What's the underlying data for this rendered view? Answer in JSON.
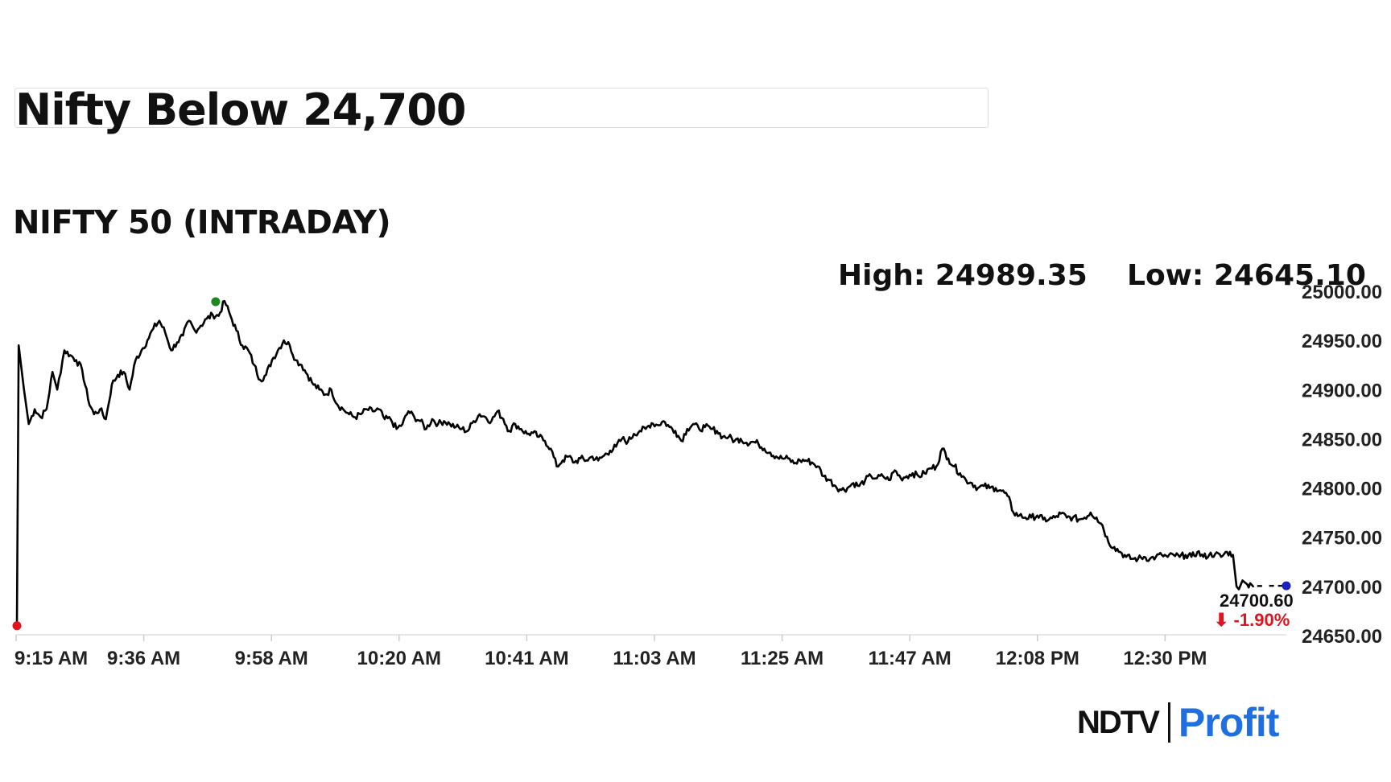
{
  "headline": "Nifty Below 24,700",
  "chart_title": "NIFTY 50 (INTRADAY)",
  "high_label": "High: 24989.35",
  "low_label": "Low: 24645.10",
  "last_value_label": "24700.60",
  "change_label": "⬇ -1.90%",
  "logo": {
    "ndtv": "NDTV",
    "profit": "Profit"
  },
  "colors": {
    "line": "#000000",
    "open_marker": "#e0141e",
    "high_marker": "#1a8a1a",
    "last_marker": "#1a22c0",
    "change_negative": "#e0141e"
  },
  "chart_data": {
    "type": "line",
    "title": "NIFTY 50 (INTRADAY)",
    "xlabel": "",
    "ylabel": "",
    "y_ticks": [
      "25000.00",
      "24950.00",
      "24900.00",
      "24850.00",
      "24800.00",
      "24750.00",
      "24700.00",
      "24650.00"
    ],
    "x_ticks": [
      "9:15 AM",
      "9:36 AM",
      "9:58 AM",
      "10:20 AM",
      "10:41 AM",
      "11:03 AM",
      "11:25 AM",
      "11:47 AM",
      "12:08 PM",
      "12:30 PM"
    ],
    "ylim": [
      24650,
      25000
    ],
    "x_range_minutes": [
      0,
      214
    ],
    "grid": false,
    "series": [
      {
        "points": [
          [
            0,
            24660
          ],
          [
            0.3,
            24945
          ],
          [
            1.2,
            24900
          ],
          [
            2,
            24865
          ],
          [
            3,
            24880
          ],
          [
            4,
            24872
          ],
          [
            5,
            24880
          ],
          [
            6,
            24918
          ],
          [
            6.8,
            24900
          ],
          [
            8,
            24940
          ],
          [
            9,
            24935
          ],
          [
            10,
            24930
          ],
          [
            11,
            24920
          ],
          [
            12,
            24890
          ],
          [
            13,
            24875
          ],
          [
            14,
            24880
          ],
          [
            15,
            24870
          ],
          [
            16,
            24905
          ],
          [
            17,
            24915
          ],
          [
            18,
            24918
          ],
          [
            19,
            24900
          ],
          [
            20,
            24930
          ],
          [
            21,
            24940
          ],
          [
            22,
            24950
          ],
          [
            23,
            24962
          ],
          [
            24,
            24970
          ],
          [
            25,
            24958
          ],
          [
            26,
            24940
          ],
          [
            27,
            24948
          ],
          [
            28,
            24955
          ],
          [
            29,
            24970
          ],
          [
            30,
            24960
          ],
          [
            31,
            24965
          ],
          [
            32,
            24972
          ],
          [
            33,
            24976
          ],
          [
            34,
            24975
          ],
          [
            35,
            24990
          ],
          [
            36,
            24975
          ],
          [
            37,
            24960
          ],
          [
            38,
            24945
          ],
          [
            39,
            24940
          ],
          [
            40,
            24925
          ],
          [
            41,
            24910
          ],
          [
            42,
            24915
          ],
          [
            43,
            24930
          ],
          [
            44,
            24940
          ],
          [
            45,
            24950
          ],
          [
            46,
            24945
          ],
          [
            47,
            24930
          ],
          [
            48,
            24925
          ],
          [
            49,
            24915
          ],
          [
            50,
            24905
          ],
          [
            51,
            24900
          ],
          [
            52,
            24895
          ],
          [
            53,
            24900
          ],
          [
            54,
            24885
          ],
          [
            55,
            24880
          ],
          [
            56,
            24875
          ],
          [
            57,
            24872
          ],
          [
            58,
            24875
          ],
          [
            59,
            24880
          ],
          [
            60,
            24878
          ],
          [
            61,
            24880
          ],
          [
            62,
            24870
          ],
          [
            63,
            24870
          ],
          [
            64,
            24860
          ],
          [
            65,
            24865
          ],
          [
            66,
            24878
          ],
          [
            67,
            24872
          ],
          [
            68,
            24868
          ],
          [
            69,
            24860
          ],
          [
            70,
            24870
          ],
          [
            71,
            24865
          ],
          [
            72,
            24868
          ],
          [
            73,
            24865
          ],
          [
            74,
            24862
          ],
          [
            75,
            24860
          ],
          [
            76,
            24858
          ],
          [
            77,
            24868
          ],
          [
            78,
            24875
          ],
          [
            79,
            24872
          ],
          [
            80,
            24868
          ],
          [
            81,
            24878
          ],
          [
            82,
            24870
          ],
          [
            83,
            24858
          ],
          [
            84,
            24865
          ],
          [
            85,
            24860
          ],
          [
            86,
            24855
          ],
          [
            87,
            24856
          ],
          [
            88,
            24852
          ],
          [
            89,
            24848
          ],
          [
            90,
            24840
          ],
          [
            91,
            24822
          ],
          [
            92,
            24828
          ],
          [
            93,
            24832
          ],
          [
            94,
            24826
          ],
          [
            95,
            24830
          ],
          [
            96,
            24828
          ],
          [
            97,
            24832
          ],
          [
            98,
            24828
          ],
          [
            99,
            24833
          ],
          [
            100,
            24838
          ],
          [
            101,
            24842
          ],
          [
            102,
            24850
          ],
          [
            103,
            24847
          ],
          [
            104,
            24855
          ],
          [
            105,
            24858
          ],
          [
            106,
            24860
          ],
          [
            107,
            24866
          ],
          [
            108,
            24864
          ],
          [
            109,
            24868
          ],
          [
            110,
            24862
          ],
          [
            111,
            24858
          ],
          [
            112,
            24848
          ],
          [
            113,
            24860
          ],
          [
            114,
            24865
          ],
          [
            115,
            24860
          ],
          [
            116,
            24862
          ],
          [
            117,
            24860
          ],
          [
            118,
            24858
          ],
          [
            119,
            24852
          ],
          [
            120,
            24852
          ],
          [
            121,
            24848
          ],
          [
            122,
            24850
          ],
          [
            123,
            24846
          ],
          [
            124,
            24847
          ],
          [
            125,
            24845
          ],
          [
            126,
            24840
          ],
          [
            127,
            24836
          ],
          [
            128,
            24832
          ],
          [
            129,
            24830
          ],
          [
            130,
            24830
          ],
          [
            131,
            24825
          ],
          [
            132,
            24828
          ],
          [
            133,
            24828
          ],
          [
            134,
            24826
          ],
          [
            135,
            24822
          ],
          [
            136,
            24812
          ],
          [
            137,
            24808
          ],
          [
            138,
            24802
          ],
          [
            139,
            24798
          ],
          [
            140,
            24800
          ],
          [
            141,
            24805
          ],
          [
            142,
            24802
          ],
          [
            143,
            24808
          ],
          [
            144,
            24812
          ],
          [
            145,
            24810
          ],
          [
            146,
            24812
          ],
          [
            147,
            24808
          ],
          [
            148,
            24818
          ],
          [
            149,
            24810
          ],
          [
            150,
            24812
          ],
          [
            151,
            24815
          ],
          [
            152,
            24812
          ],
          [
            153,
            24815
          ],
          [
            154,
            24820
          ],
          [
            155,
            24822
          ],
          [
            156,
            24840
          ],
          [
            157,
            24830
          ],
          [
            158,
            24822
          ],
          [
            159,
            24815
          ],
          [
            160,
            24808
          ],
          [
            161,
            24805
          ],
          [
            162,
            24800
          ],
          [
            163,
            24802
          ],
          [
            164,
            24800
          ],
          [
            165,
            24800
          ],
          [
            166,
            24797
          ],
          [
            167,
            24792
          ],
          [
            168,
            24775
          ],
          [
            169,
            24772
          ],
          [
            170,
            24770
          ],
          [
            171,
            24770
          ],
          [
            172,
            24772
          ],
          [
            173,
            24768
          ],
          [
            174,
            24768
          ],
          [
            175,
            24770
          ],
          [
            176,
            24774
          ],
          [
            177,
            24770
          ],
          [
            178,
            24770
          ],
          [
            179,
            24768
          ],
          [
            180,
            24770
          ],
          [
            181,
            24775
          ],
          [
            182,
            24770
          ],
          [
            183,
            24762
          ],
          [
            184,
            24745
          ],
          [
            185,
            24740
          ],
          [
            186,
            24735
          ],
          [
            187,
            24730
          ],
          [
            188,
            24728
          ],
          [
            189,
            24728
          ],
          [
            190,
            24730
          ],
          [
            191,
            24728
          ],
          [
            192,
            24730
          ],
          [
            193,
            24732
          ],
          [
            194,
            24730
          ],
          [
            195,
            24732
          ],
          [
            196,
            24730
          ],
          [
            197,
            24732
          ],
          [
            198,
            24730
          ],
          [
            199,
            24735
          ],
          [
            200,
            24730
          ],
          [
            201,
            24732
          ],
          [
            202,
            24733
          ],
          [
            203,
            24730
          ],
          [
            204,
            24735
          ],
          [
            205,
            24732
          ],
          [
            205.6,
            24700
          ],
          [
            206,
            24697
          ],
          [
            206.6,
            24706
          ],
          [
            207.4,
            24702
          ],
          [
            208.4,
            24700
          ]
        ]
      }
    ],
    "annotations": {
      "open_point": [
        0,
        24660
      ],
      "high_point": [
        33.5,
        24989.35
      ],
      "last_point": [
        214,
        24700.6
      ],
      "last_value": 24700.6,
      "change_percent": -1.9,
      "high": 24989.35,
      "low": 24645.1
    }
  }
}
